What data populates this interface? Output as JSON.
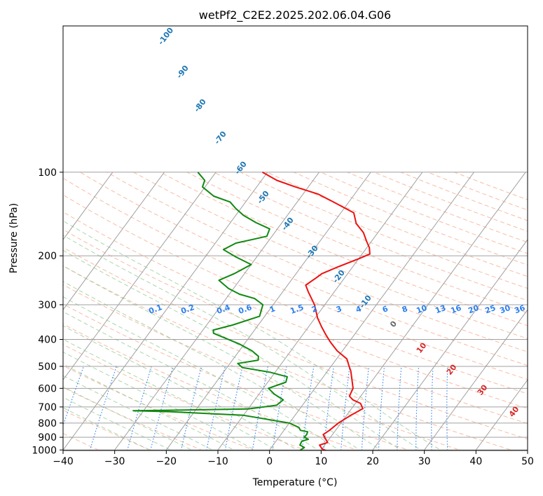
{
  "chart_data": {
    "type": "line",
    "title": "wetPf2_C2E2.2025.202.06.04.G06",
    "xlabel": "Temperature (°C)",
    "ylabel": "Pressure (hPa)",
    "xlim": [
      -40,
      50
    ],
    "ylim": [
      1050,
      100
    ],
    "y_scale": "log",
    "skew": "skew-T diagram",
    "x_ticks": [
      "−40",
      "−30",
      "−20",
      "−10",
      "0",
      "10",
      "20",
      "30",
      "40",
      "50"
    ],
    "y_ticks": [
      "100",
      "200",
      "300",
      "400",
      "500",
      "600",
      "700",
      "800",
      "900",
      "1000"
    ],
    "grid": true,
    "colors": {
      "temperature": "#ee1111",
      "dewpoint": "#118811",
      "isotherm": "#a0a0a0",
      "dry_adiabat": "#f4a587",
      "moist_adiabat": "#90c890",
      "mixing_ratio": "#2a7ff0",
      "isotherm_label": "#1f77b4",
      "adiabat_label": "#d62728",
      "zero_label": "#666666",
      "hgz": "#e0c8a8"
    },
    "series": [
      {
        "name": "temperature",
        "points": [
          [
            12,
            1020
          ],
          [
            10,
            990
          ],
          [
            9,
            960
          ],
          [
            10.2,
            940
          ],
          [
            9.2,
            910
          ],
          [
            8.2,
            880
          ],
          [
            8.8,
            850
          ],
          [
            9.5,
            800
          ],
          [
            10.8,
            750
          ],
          [
            12.2,
            710
          ],
          [
            11,
            680
          ],
          [
            9,
            660
          ],
          [
            7.8,
            640
          ],
          [
            7.4,
            600
          ],
          [
            6,
            560
          ],
          [
            4.5,
            520
          ],
          [
            3.5,
            500
          ],
          [
            2,
            470
          ],
          [
            -1,
            440
          ],
          [
            -3.5,
            410
          ],
          [
            -5.5,
            385
          ],
          [
            -7.5,
            360
          ],
          [
            -9.5,
            335
          ],
          [
            -12,
            300
          ],
          [
            -15,
            270
          ],
          [
            -16.5,
            255
          ],
          [
            -15.5,
            240
          ],
          [
            -15,
            232
          ],
          [
            -13,
            220
          ],
          [
            -10,
            205
          ],
          [
            -8.5,
            197
          ],
          [
            -9.5,
            187
          ],
          [
            -11,
            177
          ],
          [
            -12.8,
            165
          ],
          [
            -15.5,
            153
          ],
          [
            -17.5,
            140
          ],
          [
            -23,
            128
          ],
          [
            -27,
            120
          ],
          [
            -32.5,
            113
          ],
          [
            -37,
            107
          ],
          [
            -41,
            100
          ]
        ]
      },
      {
        "name": "dewpoint",
        "points": [
          [
            7,
            1020
          ],
          [
            6,
            1000
          ],
          [
            6.4,
            980
          ],
          [
            5.2,
            960
          ],
          [
            5,
            930
          ],
          [
            6,
            915
          ],
          [
            4.9,
            900
          ],
          [
            5,
            880
          ],
          [
            4.8,
            860
          ],
          [
            3.2,
            850
          ],
          [
            2.5,
            830
          ],
          [
            0,
            800
          ],
          [
            -10,
            750
          ],
          [
            -25,
            728
          ],
          [
            -32,
            722
          ],
          [
            -20,
            717
          ],
          [
            -10,
            712
          ],
          [
            -5,
            690
          ],
          [
            -4.5,
            660
          ],
          [
            -7,
            630
          ],
          [
            -9,
            600
          ],
          [
            -6.5,
            570
          ],
          [
            -7,
            545
          ],
          [
            -11,
            525
          ],
          [
            -17,
            505
          ],
          [
            -18.5,
            488
          ],
          [
            -15,
            475
          ],
          [
            -15.5,
            460
          ],
          [
            -17.5,
            440
          ],
          [
            -21,
            415
          ],
          [
            -27.5,
            380
          ],
          [
            -28,
            370
          ],
          [
            -25,
            355
          ],
          [
            -21,
            330
          ],
          [
            -22,
            300
          ],
          [
            -24.5,
            285
          ],
          [
            -28,
            275
          ],
          [
            -31,
            262
          ],
          [
            -34,
            245
          ],
          [
            -32,
            232
          ],
          [
            -30,
            215
          ],
          [
            -34,
            202
          ],
          [
            -37.5,
            190
          ],
          [
            -36,
            180
          ],
          [
            -33.5,
            175
          ],
          [
            -31,
            170
          ],
          [
            -31.5,
            160
          ],
          [
            -35,
            152
          ],
          [
            -38.5,
            143
          ],
          [
            -41,
            135
          ],
          [
            -43,
            128
          ],
          [
            -47,
            122
          ],
          [
            -50.5,
            113
          ],
          [
            -51,
            107
          ],
          [
            -53.5,
            100
          ]
        ]
      }
    ],
    "isotherm_labels": [
      "-100",
      "-90",
      "-80",
      "-70",
      "-60",
      "-50",
      "-40",
      "-30",
      "-20",
      "-10",
      "0"
    ],
    "mixing_ratio_labels": [
      "0.1",
      "0.2",
      "0.4",
      "0.6",
      "1",
      "1.5",
      "2",
      "3",
      "4",
      "6",
      "8",
      "10",
      "13",
      "16",
      "20",
      "25",
      "30",
      "36"
    ],
    "adiabat_labels": [
      "10",
      "20",
      "30",
      "40"
    ]
  }
}
